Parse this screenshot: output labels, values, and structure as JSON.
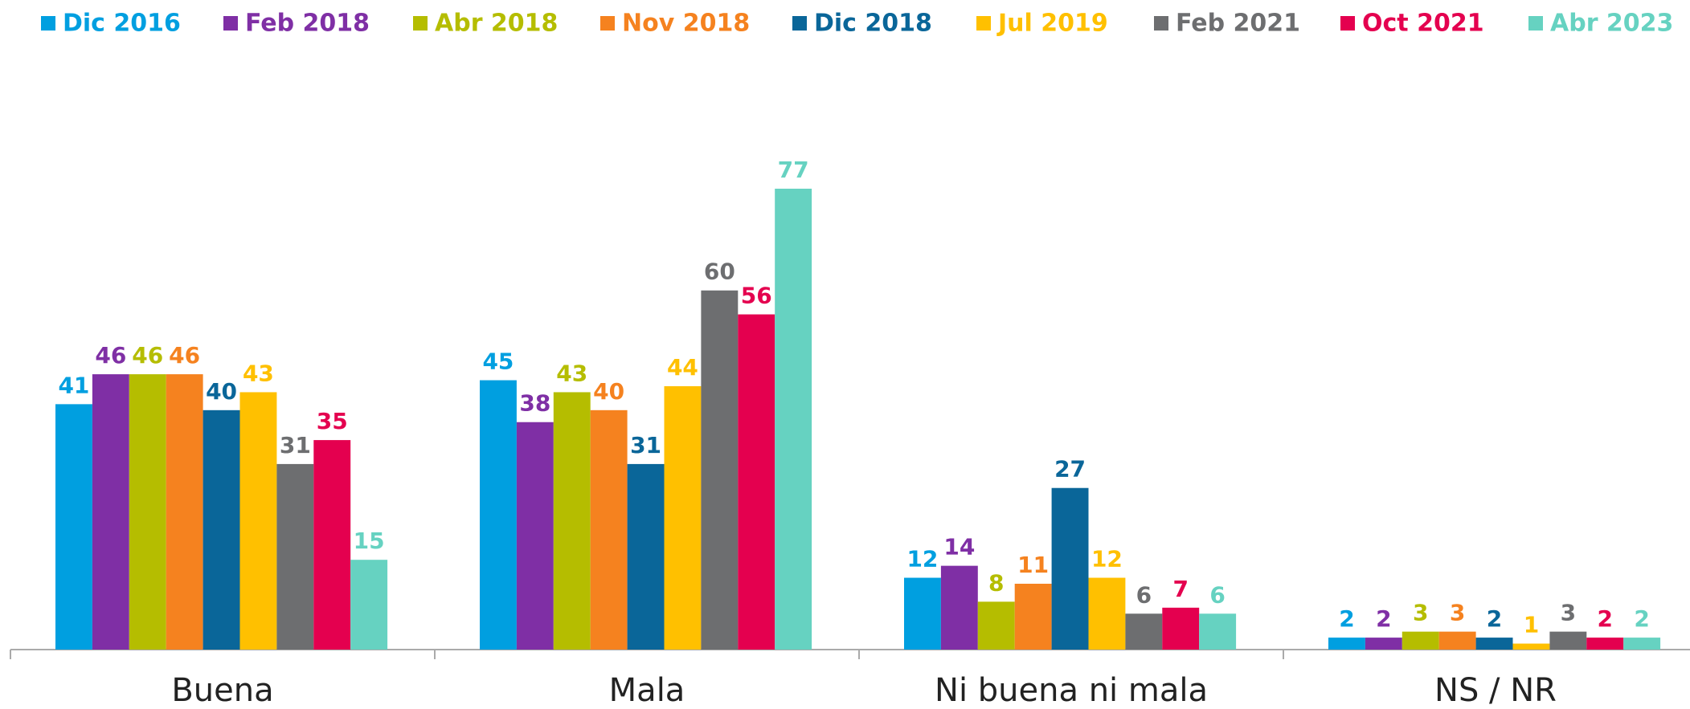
{
  "chart_data": {
    "type": "bar",
    "categories": [
      "Buena",
      "Mala",
      "Ni buena ni mala",
      "NS / NR"
    ],
    "series": [
      {
        "name": "Dic 2016",
        "color": "#009fe0",
        "values": [
          41,
          45,
          12,
          2
        ]
      },
      {
        "name": "Feb 2018",
        "color": "#7f2fa5",
        "values": [
          46,
          38,
          14,
          2
        ]
      },
      {
        "name": "Abr 2018",
        "color": "#b5bd00",
        "values": [
          46,
          43,
          8,
          3
        ]
      },
      {
        "name": "Nov 2018",
        "color": "#f5821f",
        "values": [
          46,
          40,
          11,
          3
        ]
      },
      {
        "name": "Dic 2018",
        "color": "#0a6699",
        "values": [
          40,
          31,
          27,
          2
        ]
      },
      {
        "name": "Jul 2019",
        "color": "#ffc000",
        "values": [
          43,
          44,
          12,
          1
        ]
      },
      {
        "name": "Feb 2021",
        "color": "#6d6e70",
        "values": [
          31,
          60,
          6,
          3
        ]
      },
      {
        "name": "Oct 2021",
        "color": "#e4004f",
        "values": [
          35,
          56,
          7,
          2
        ]
      },
      {
        "name": "Abr 2023",
        "color": "#66d2c1",
        "values": [
          15,
          77,
          6,
          2
        ]
      }
    ],
    "legend": "top"
  }
}
